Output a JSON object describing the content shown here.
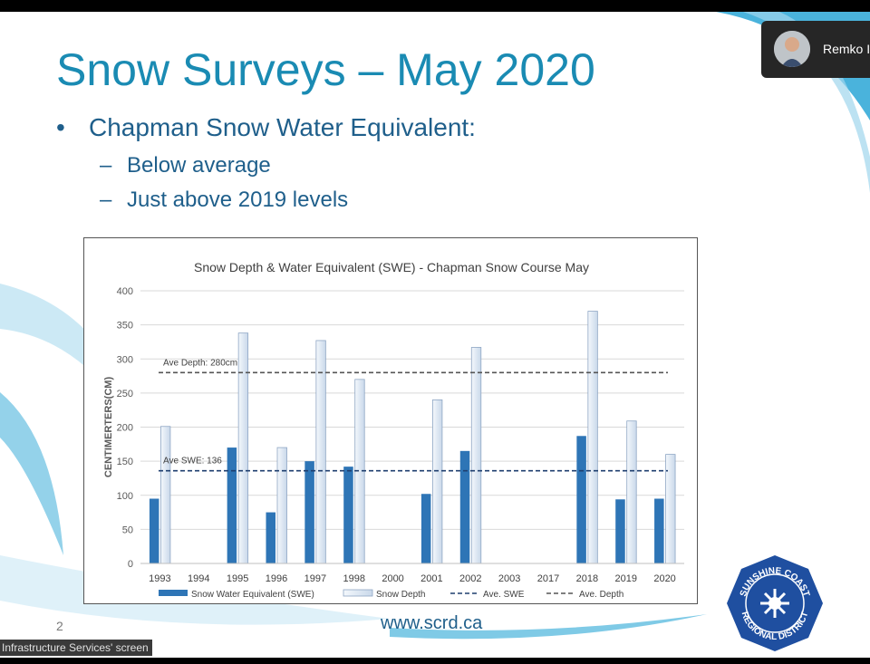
{
  "slide": {
    "title": "Snow Surveys – May 2020",
    "bullet": "Chapman Snow Water Equivalent:",
    "bullet_marker": "•",
    "sub_marker": "–",
    "sub_bullets": [
      "Below average",
      "Just above 2019 levels"
    ],
    "page_number": "2",
    "website": "www.scrd.ca"
  },
  "video_tile": {
    "participant_name": "Remko I",
    "avatar_icon": "person-avatar-icon"
  },
  "caption_bar": {
    "text": "Infrastructure Services' screen"
  },
  "logo": {
    "text_top": "SUNSHINE COAST",
    "text_bottom": "REGIONAL DISTRICT",
    "icon": "star-burst-icon",
    "color": "#1f4fa0"
  },
  "chart_data": {
    "type": "bar",
    "title": "Snow Depth & Water Equivalent (SWE) - Chapman Snow Course May",
    "ylabel": "CENTIMERTERS(CM)",
    "xlabel": "",
    "ylim": [
      0,
      400
    ],
    "yticks": [
      0,
      50,
      100,
      150,
      200,
      250,
      300,
      350,
      400
    ],
    "grid": true,
    "categories": [
      "1993",
      "1994",
      "1995",
      "1996",
      "1997",
      "1998",
      "2000",
      "2001",
      "2002",
      "2003",
      "2017",
      "2018",
      "2019",
      "2020"
    ],
    "series": [
      {
        "name": "Snow Water Equivalent (SWE)",
        "color": "#2e75b6",
        "values": [
          95,
          null,
          170,
          75,
          150,
          142,
          null,
          102,
          165,
          null,
          null,
          187,
          94,
          95
        ]
      },
      {
        "name": "Snow Depth",
        "color": "#dce6f2",
        "values": [
          201,
          null,
          338,
          170,
          327,
          270,
          null,
          240,
          317,
          null,
          null,
          370,
          209,
          160
        ]
      }
    ],
    "reference_lines": [
      {
        "name": "Ave. SWE",
        "value": 136,
        "label": "Ave SWE: 136",
        "color": "#1f3f6f"
      },
      {
        "name": "Ave. Depth",
        "value": 280,
        "label": "Ave Depth: 280cm",
        "color": "#555555"
      }
    ],
    "legend": {
      "position": "bottom",
      "items": [
        "Snow Water Equivalent (SWE)",
        "Snow Depth",
        "Ave. SWE",
        "Ave. Depth"
      ]
    }
  }
}
